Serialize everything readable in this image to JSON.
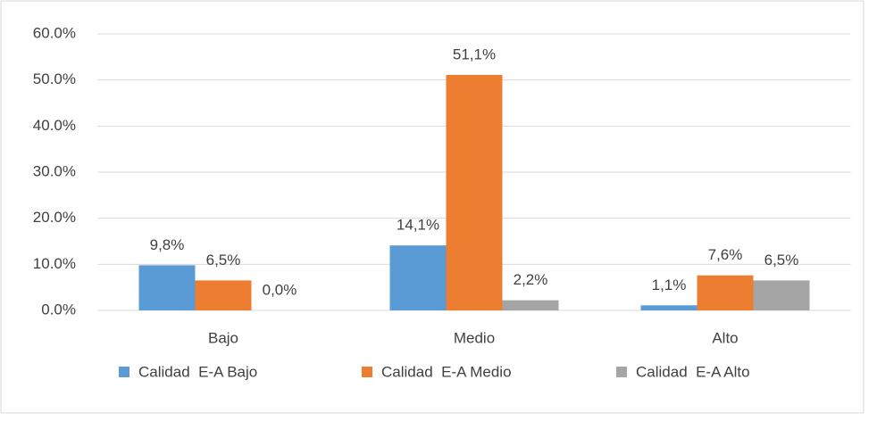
{
  "chart_data": {
    "type": "bar",
    "categories": [
      "Bajo",
      "Medio",
      "Alto"
    ],
    "series": [
      {
        "name": "Calidad  E-A Bajo",
        "color": "#5b9bd5",
        "values": [
          9.8,
          14.1,
          1.1
        ],
        "value_labels": [
          "9,8%",
          "14,1%",
          "1,1%"
        ]
      },
      {
        "name": "Calidad  E-A Medio",
        "color": "#ed7d31",
        "values": [
          6.5,
          51.1,
          7.6
        ],
        "value_labels": [
          "6,5%",
          "51,1%",
          "7,6%"
        ]
      },
      {
        "name": "Calidad  E-A Alto",
        "color": "#a5a5a5",
        "values": [
          0.0,
          2.2,
          6.5
        ],
        "value_labels": [
          "0,0%",
          "2,2%",
          "6,5%"
        ]
      }
    ],
    "ylim": [
      0,
      60
    ],
    "yticks": [
      {
        "value": 0,
        "label": "0.0%"
      },
      {
        "value": 10,
        "label": "10.0%"
      },
      {
        "value": 20,
        "label": "20.0%"
      },
      {
        "value": 30,
        "label": "30.0%"
      },
      {
        "value": 40,
        "label": "40.0%"
      },
      {
        "value": 50,
        "label": "50.0%"
      },
      {
        "value": 60,
        "label": "60.0%"
      }
    ],
    "grid": true,
    "legend": "bottom"
  }
}
